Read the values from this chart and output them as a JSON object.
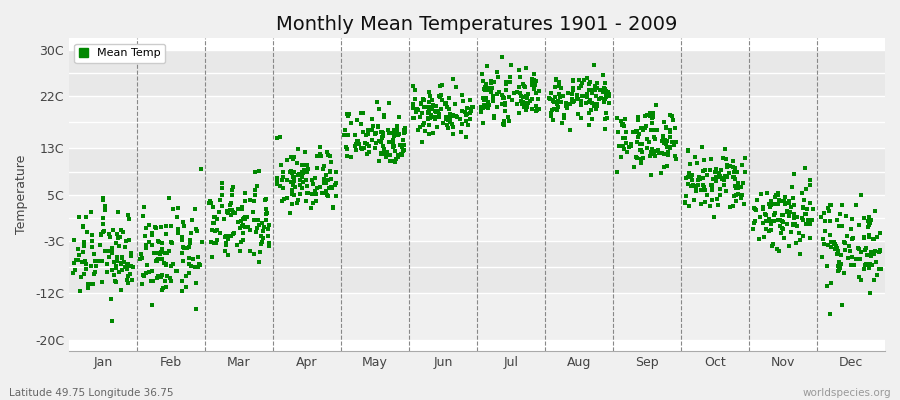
{
  "title": "Monthly Mean Temperatures 1901 - 2009",
  "ylabel": "Temperature",
  "xlabel_labels": [
    "Jan",
    "Feb",
    "Mar",
    "Apr",
    "May",
    "Jun",
    "Jul",
    "Aug",
    "Sep",
    "Oct",
    "Nov",
    "Dec"
  ],
  "ytick_labels": [
    "-20C",
    "-12C",
    "",
    "-3C",
    "",
    "5C",
    "",
    "13C",
    "",
    "22C",
    "",
    "30C"
  ],
  "ytick_values": [
    -20,
    -12,
    -7.5,
    -3,
    1,
    5,
    9,
    13,
    17.5,
    22,
    26,
    30
  ],
  "ylim": [
    -22,
    32
  ],
  "background_color": "#f0f0f0",
  "plot_bg_color": "#ffffff",
  "dot_color": "#008800",
  "dot_size": 5,
  "dot_marker": "s",
  "footer_left": "Latitude 49.75 Longitude 36.75",
  "footer_right": "worldspecies.org",
  "legend_label": "Mean Temp",
  "title_fontsize": 14,
  "monthly_means": [
    -5.5,
    -5.5,
    0.0,
    7.5,
    15.0,
    19.5,
    22.0,
    21.5,
    14.5,
    7.0,
    1.5,
    -3.5
  ],
  "monthly_stds": [
    3.8,
    3.8,
    3.5,
    2.8,
    2.5,
    2.2,
    2.0,
    2.0,
    2.5,
    2.8,
    3.2,
    3.8
  ],
  "n_points": 109,
  "stripe_colors": [
    "#f0f0f0",
    "#e8e8e8"
  ],
  "stripe_ytick_values": [
    -20,
    -12,
    -3,
    5,
    13,
    22,
    30
  ],
  "dashed_line_color": "#888888",
  "grid_color": "#ffffff"
}
